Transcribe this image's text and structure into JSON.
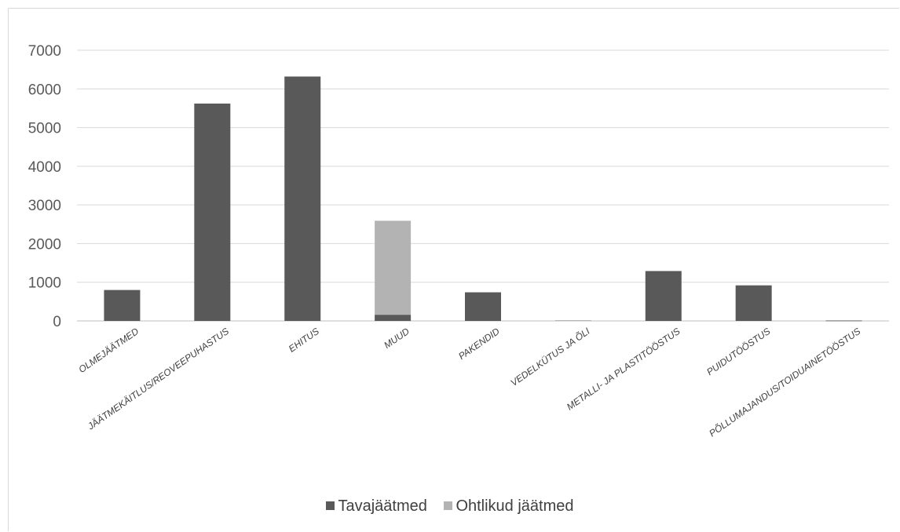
{
  "chart_data": {
    "type": "bar",
    "stacked": true,
    "categories": [
      "OLMEJÄÄTMED",
      "JÄÄTMEKÄITLUS/REOVEEPUHASTUS",
      "EHITUS",
      "MUUD",
      "PAKENDID",
      "VEDELKÜTUS JA ÕLI",
      "METALLI- JA PLASTITÖÖSTUS",
      "PUIDUTÖÖSTUS",
      "PÕLLUMAJANDUS/TOIDUAINETÖÖSTUS"
    ],
    "series": [
      {
        "name": "Tavajäätmed",
        "color": "#595959",
        "values": [
          800,
          5620,
          6320,
          160,
          740,
          0,
          1290,
          920,
          10
        ]
      },
      {
        "name": "Ohtlikud jäätmed",
        "color": "#b3b3b3",
        "values": [
          0,
          0,
          0,
          2430,
          0,
          20,
          0,
          0,
          10
        ]
      }
    ],
    "ylim": [
      0,
      7000
    ],
    "yticks": [
      0,
      1000,
      2000,
      3000,
      4000,
      5000,
      6000,
      7000
    ],
    "grid": true,
    "legend_position": "bottom"
  }
}
